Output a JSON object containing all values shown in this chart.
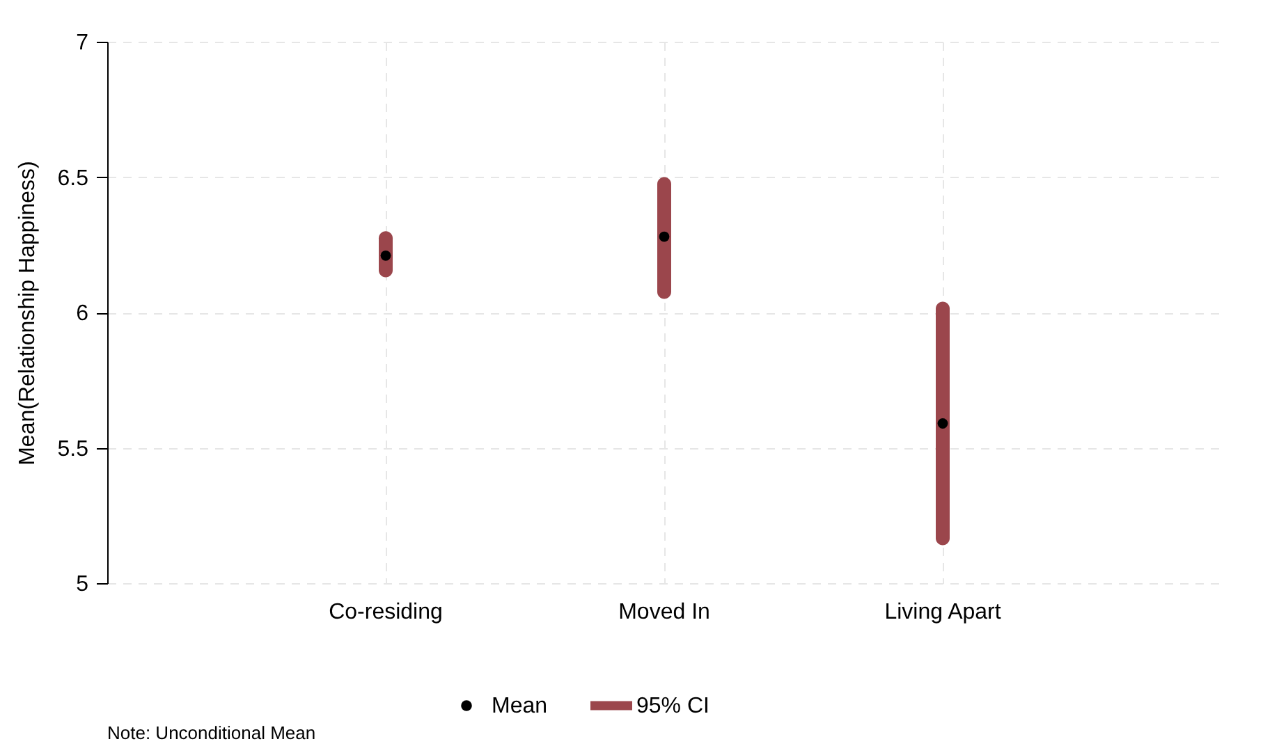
{
  "chart_data": {
    "type": "scatter",
    "ylabel": "Mean(Relationship Happiness)",
    "categories": [
      "Co-residing",
      "Moved In",
      "Living Apart"
    ],
    "series": [
      {
        "name": "Mean",
        "color": "#000000",
        "values": [
          6.21,
          6.28,
          5.59
        ]
      },
      {
        "name": "95% CI",
        "type": "bar",
        "color": "#9b464c",
        "base": [
          6.13,
          6.05,
          5.14
        ],
        "values": [
          0.17,
          0.45,
          0.9
        ]
      }
    ],
    "ylim": [
      5,
      7
    ],
    "yticks": [
      {
        "value": 5,
        "label": "5"
      },
      5.5,
      {
        "value": 6,
        "label": "6"
      },
      6.5,
      {
        "value": 7,
        "label": "7"
      }
    ],
    "grid": true,
    "legend": "bottom",
    "marker": "circle",
    "annotations": [
      "Note: Unconditional Mean"
    ]
  }
}
